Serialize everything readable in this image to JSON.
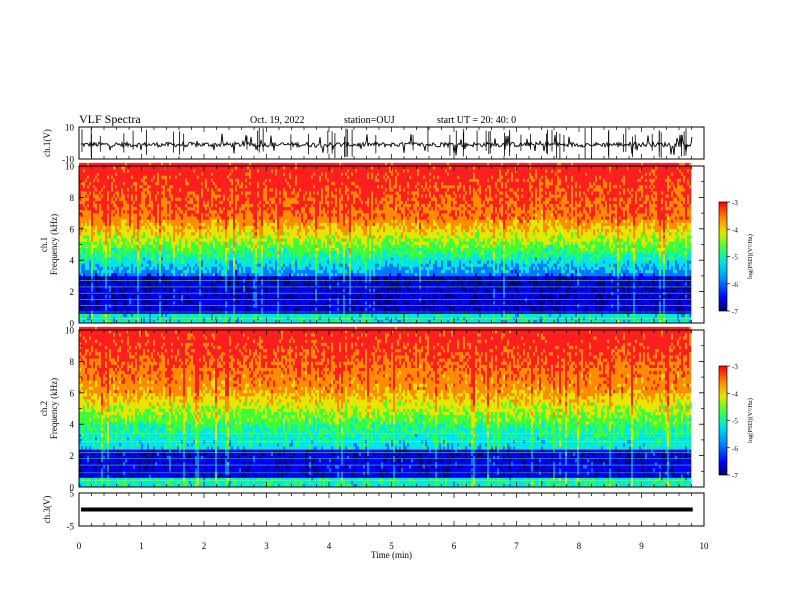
{
  "header": {
    "title": "VLF Spectra",
    "date": "Oct. 19, 2022",
    "station": "station=OUJ",
    "start_ut": "start UT =  20: 40: 0"
  },
  "chart_data": [
    {
      "type": "line",
      "panel": "ch1-waveform",
      "ylabel": "ch.1(V)",
      "ylim": [
        -10,
        10
      ],
      "yticks": [
        "10",
        "-10"
      ],
      "xlim": [
        0,
        10
      ],
      "series": [
        {
          "baseline": -1,
          "spike_range": [
            -10,
            10
          ]
        }
      ]
    },
    {
      "type": "heatmap",
      "panel": "ch1-spectrogram",
      "ylabel": "ch.1\nFrequency (kHz)",
      "ylim": [
        0,
        10
      ],
      "yticks": [
        "0",
        "2",
        "4",
        "6",
        "8",
        "10"
      ],
      "xlim": [
        0,
        10
      ],
      "data_end_min": 9.82,
      "colorbar": {
        "label": "log(PSD)(V²/Hz)",
        "range": [
          -7,
          -3
        ],
        "ticks": [
          "-3",
          "-4",
          "-5",
          "-6",
          "-7"
        ]
      },
      "notes": "low PSD (about -6 to -7) below ~3 kHz, rising to about -3 above ~6 kHz, with vertical impulsive streaks"
    },
    {
      "type": "heatmap",
      "panel": "ch2-spectrogram",
      "ylabel": "ch.2\nFrequency (kHz)",
      "ylim": [
        0,
        10
      ],
      "yticks": [
        "0",
        "2",
        "4",
        "6",
        "8",
        "10"
      ],
      "xlim": [
        0,
        10
      ],
      "data_end_min": 9.82,
      "colorbar": {
        "label": "log(PSD)(V²/Hz)",
        "range": [
          -7,
          -3
        ],
        "ticks": [
          "-3",
          "-4",
          "-5",
          "-6",
          "-7"
        ]
      },
      "notes": "low PSD below ~2 kHz, mid levels 2-5 kHz, high above ~5 kHz"
    },
    {
      "type": "line",
      "panel": "ch3-waveform",
      "ylabel": "ch.3(V)",
      "ylim": [
        -5,
        5
      ],
      "yticks": [
        "5",
        "-5"
      ],
      "xlim": [
        0,
        10
      ],
      "xticks": [
        "0",
        "1",
        "2",
        "3",
        "4",
        "5",
        "6",
        "7",
        "8",
        "9",
        "10"
      ],
      "xlabel": "Time (min)",
      "series": [
        {
          "value": 0
        }
      ]
    }
  ],
  "colors": {
    "scale": [
      "#00007a",
      "#0000ff",
      "#0078ff",
      "#00e6e6",
      "#3cff3c",
      "#e6e600",
      "#ff8c00",
      "#ff1e1e"
    ],
    "trace": "#000000"
  }
}
